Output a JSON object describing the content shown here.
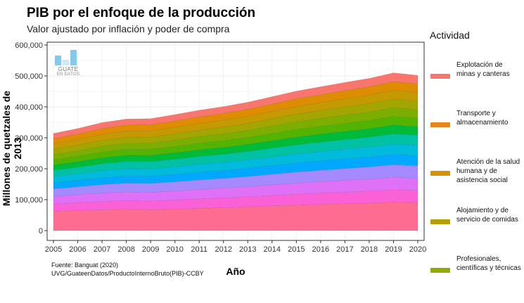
{
  "chart_data": {
    "type": "area",
    "stacked": true,
    "title": "PIB por el enfoque de la producción",
    "subtitle": "Valor ajustado por inflación y poder de compra",
    "xlabel": "Año",
    "ylabel": "Millones de quetzales de 2013",
    "x": [
      2005,
      2006,
      2007,
      2008,
      2009,
      2010,
      2011,
      2012,
      2013,
      2014,
      2015,
      2016,
      2017,
      2018,
      2019,
      2020
    ],
    "ylim": [
      0,
      600000
    ],
    "yticks": [
      "0",
      "100,000",
      "200,000",
      "300,000",
      "400,000",
      "500,000",
      "600,000"
    ],
    "xticks": [
      "2005",
      "2006",
      "2007",
      "2008",
      "2009",
      "2010",
      "2011",
      "2012",
      "2013",
      "2014",
      "2015",
      "2016",
      "2017",
      "2018",
      "2019",
      "2020"
    ],
    "totals": [
      314000,
      330000,
      349000,
      361000,
      362000,
      375000,
      389000,
      401000,
      415000,
      433000,
      451000,
      465000,
      479000,
      492000,
      510000,
      502000
    ],
    "base": {
      "values": [
        62000,
        65000,
        67000,
        69000,
        67000,
        69000,
        72000,
        74000,
        77000,
        80000,
        82000,
        85000,
        87000,
        89000,
        92000,
        90000
      ]
    },
    "band_colors": [
      "#ff6c91",
      "#fb61d7",
      "#df70f8",
      "#a58aff",
      "#00a9ff",
      "#00bbdb",
      "#00c1a3",
      "#00ba38",
      "#53b400",
      "#7cae00",
      "#a3a500",
      "#c49a00",
      "#de8c00",
      "#f8766d"
    ],
    "legend": {
      "title": "Actividad",
      "position": "right",
      "items": [
        {
          "label": "Explotación de minas y canteras",
          "color": "#f8766d"
        },
        {
          "label": "Transporte y almacenamiento",
          "color": "#e7861b"
        },
        {
          "label": "Atención de la salud humana y de asistencia social",
          "color": "#d39200"
        },
        {
          "label": "Alojamiento y de servicio de comidas",
          "color": "#b79f00"
        },
        {
          "label": "Profesionales, científicas y técnicas",
          "color": "#93aa00"
        }
      ]
    },
    "grid": true
  },
  "caption": {
    "line1": "Fuente: Banguat (2020)",
    "line2": "UVG/GuateenDatos/ProductoInternoBruto(PIB)-CCBY"
  },
  "logo": {
    "line1": "GUATE",
    "line2": "EN DATOS"
  }
}
